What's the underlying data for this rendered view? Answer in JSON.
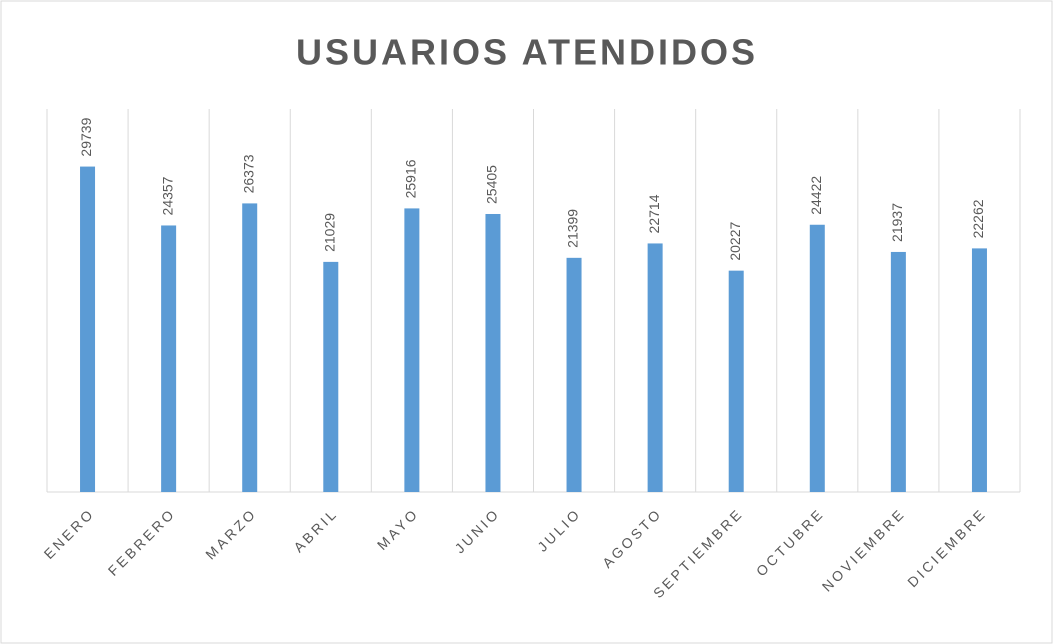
{
  "chart_data": {
    "type": "bar",
    "title": "USUARIOS ATENDIDOS",
    "categories": [
      "ENERO",
      "FEBRERO",
      "MARZO",
      "ABRIL",
      "MAYO",
      "JUNIO",
      "JULIO",
      "AGOSTO",
      "SEPTIEMBRE",
      "OCTUBRE",
      "NOVIEMBRE",
      "DICIEMBRE"
    ],
    "values": [
      29739,
      24357,
      26373,
      21029,
      25916,
      25405,
      21399,
      22714,
      20227,
      24422,
      21937,
      22262
    ],
    "color": "#5b9bd5",
    "ylim": [
      0,
      35000
    ],
    "grid": true
  }
}
